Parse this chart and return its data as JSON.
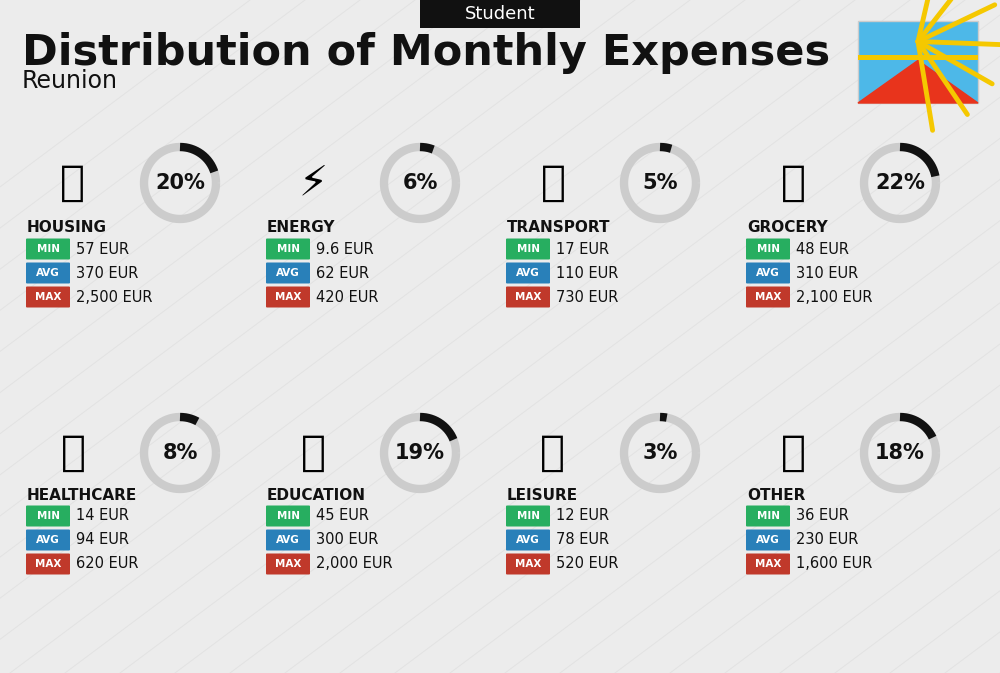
{
  "title": "Distribution of Monthly Expenses",
  "subtitle": "Reunion",
  "header_label": "Student",
  "bg_color": "#ececec",
  "categories": [
    {
      "name": "HOUSING",
      "pct": 20,
      "min": "57 EUR",
      "avg": "370 EUR",
      "max": "2,500 EUR",
      "row": 0,
      "col": 0
    },
    {
      "name": "ENERGY",
      "pct": 6,
      "min": "9.6 EUR",
      "avg": "62 EUR",
      "max": "420 EUR",
      "row": 0,
      "col": 1
    },
    {
      "name": "TRANSPORT",
      "pct": 5,
      "min": "17 EUR",
      "avg": "110 EUR",
      "max": "730 EUR",
      "row": 0,
      "col": 2
    },
    {
      "name": "GROCERY",
      "pct": 22,
      "min": "48 EUR",
      "avg": "310 EUR",
      "max": "2,100 EUR",
      "row": 0,
      "col": 3
    },
    {
      "name": "HEALTHCARE",
      "pct": 8,
      "min": "14 EUR",
      "avg": "94 EUR",
      "max": "620 EUR",
      "row": 1,
      "col": 0
    },
    {
      "name": "EDUCATION",
      "pct": 19,
      "min": "45 EUR",
      "avg": "300 EUR",
      "max": "2,000 EUR",
      "row": 1,
      "col": 1
    },
    {
      "name": "LEISURE",
      "pct": 3,
      "min": "12 EUR",
      "avg": "78 EUR",
      "max": "520 EUR",
      "row": 1,
      "col": 2
    },
    {
      "name": "OTHER",
      "pct": 18,
      "min": "36 EUR",
      "avg": "230 EUR",
      "max": "1,600 EUR",
      "row": 1,
      "col": 3
    }
  ],
  "icons": [
    "🏗️",
    "⚡",
    "🚌",
    "🛒",
    "🩺",
    "🎓",
    "🛍️",
    "👜"
  ],
  "min_color": "#27ae60",
  "avg_color": "#2980b9",
  "max_color": "#c0392b",
  "text_color": "#111111",
  "circle_gray": "#cccccc",
  "circle_black": "#111111"
}
